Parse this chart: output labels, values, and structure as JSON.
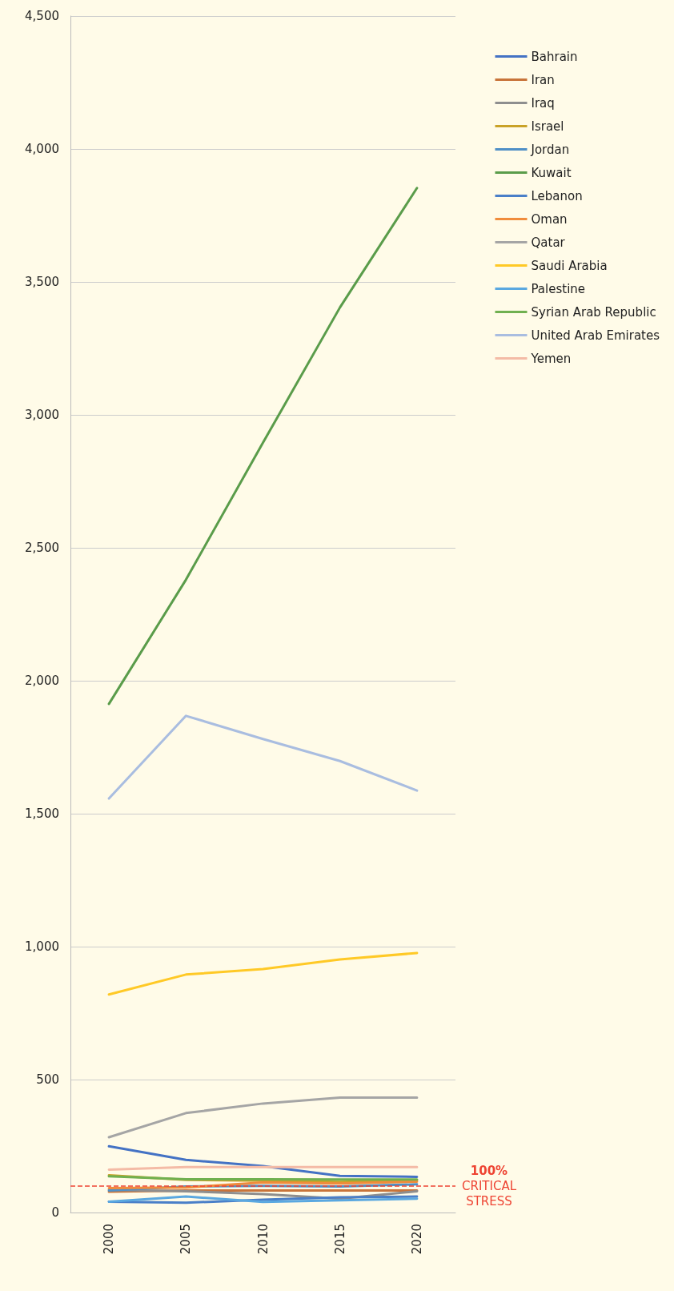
{
  "chart_data": {
    "type": "line",
    "categories": [
      "2000",
      "2005",
      "2010",
      "2015",
      "2020"
    ],
    "ylim": [
      0,
      4500
    ],
    "yticks": [
      {
        "value": 0,
        "label": "0"
      },
      {
        "value": 500,
        "label": "500"
      },
      {
        "value": 1000,
        "label": "1,000"
      },
      {
        "value": 1500,
        "label": "1,500"
      },
      {
        "value": 2000,
        "label": "2,000"
      },
      {
        "value": 2500,
        "label": "2,500"
      },
      {
        "value": 3000,
        "label": "3,000"
      },
      {
        "value": 3500,
        "label": "3,500"
      },
      {
        "value": 4000,
        "label": "4,000"
      },
      {
        "value": 4500,
        "label": "4,500"
      }
    ],
    "grid": "y",
    "legend": "right",
    "marker": "none",
    "line_style": "solid",
    "ref_lines": [
      {
        "axis": "y",
        "value": 100,
        "label": "100%\nCRITICAL\nSTRESS",
        "color": "#ee4433",
        "line_style": "dashed"
      }
    ],
    "series": [
      {
        "name": "Bahrain",
        "color": "#4472c4",
        "values": [
          249,
          198,
          175,
          138,
          134
        ]
      },
      {
        "name": "Iran",
        "color": "#c8743a",
        "values": [
          78,
          83,
          83,
          83,
          83
        ]
      },
      {
        "name": "Iraq",
        "color": "#8e8e8e",
        "values": [
          85,
          80,
          69,
          52,
          80
        ]
      },
      {
        "name": "Israel",
        "color": "#c9a227",
        "values": [
          140,
          123,
          120,
          115,
          121
        ]
      },
      {
        "name": "Jordan",
        "color": "#4f8fc6",
        "values": [
          83,
          98,
          100,
          98,
          106
        ]
      },
      {
        "name": "Kuwait",
        "color": "#5a9c4a",
        "values": [
          1913,
          2380,
          2895,
          3404,
          3853
        ]
      },
      {
        "name": "Lebanon",
        "color": "#4a7fc8",
        "values": [
          41,
          37,
          48,
          57,
          60
        ]
      },
      {
        "name": "Oman",
        "color": "#f08c3c",
        "values": [
          92,
          94,
          113,
          109,
          116
        ]
      },
      {
        "name": "Qatar",
        "color": "#a5a5a5",
        "values": [
          283,
          374,
          410,
          432,
          432
        ]
      },
      {
        "name": "Saudi Arabia",
        "color": "#ffc926",
        "values": [
          820,
          895,
          916,
          952,
          976
        ]
      },
      {
        "name": "Palestine",
        "color": "#5aa8e0",
        "values": [
          41,
          60,
          40,
          46,
          52
        ]
      },
      {
        "name": "Syrian Arab Republic",
        "color": "#70b050",
        "values": [
          136,
          125,
          125,
          124,
          124
        ]
      },
      {
        "name": "United Arab Emirates",
        "color": "#a9bde0",
        "values": [
          1557,
          1868,
          1781,
          1698,
          1587
        ]
      },
      {
        "name": "Yemen",
        "color": "#f4bba6",
        "values": [
          161,
          171,
          171,
          171,
          171
        ]
      }
    ]
  }
}
